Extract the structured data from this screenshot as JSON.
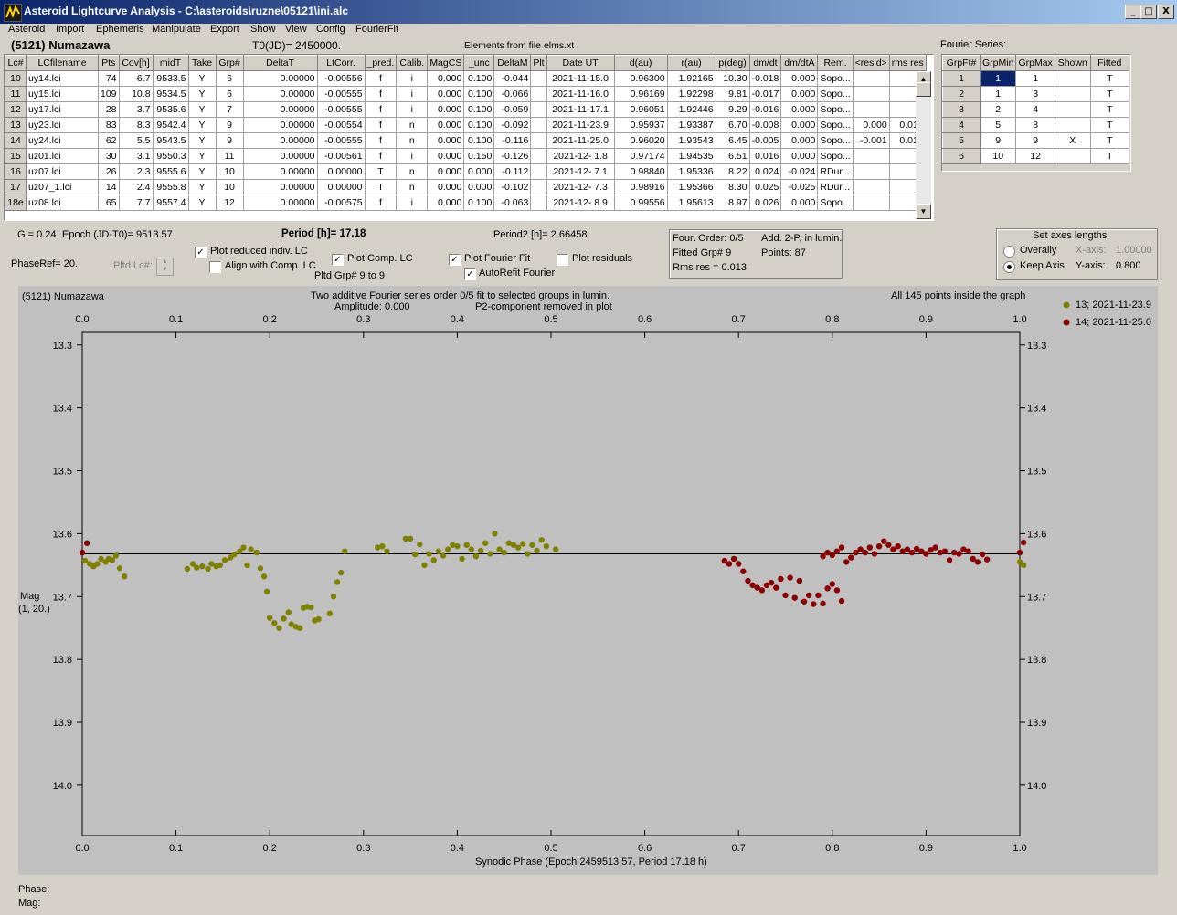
{
  "window": {
    "title": "Asteroid Lightcurve Analysis - C:\\asteroids\\ruzne\\05121\\ini.alc",
    "minimize": "_",
    "maximize": "□",
    "close": "X"
  },
  "menu": [
    "Asteroid",
    "Import",
    "Ephemeris",
    "Manipulate",
    "Export",
    "Show",
    "View",
    "Config",
    "FourierFit"
  ],
  "header": {
    "asteroid_name": "(5121) Numazawa",
    "t0": "T0(JD)= 2450000.",
    "elements": "Elements from file elms.xt",
    "fourier_series_label": "Fourier Series:"
  },
  "lc_table": {
    "columns": [
      "Lc#",
      "LCfilename",
      "Pts",
      "Cov[h]",
      "midT",
      "Take",
      "Grp#",
      "DeltaT",
      "LtCorr.",
      "_pred.",
      "Calib.",
      "MagCS",
      "_unc",
      "DeltaM",
      "Plt",
      "Date UT",
      "d(au)",
      "r(au)",
      "p(deg)",
      "dm/dt",
      "dm/dtA",
      "Rem.",
      "<resid>",
      "rms res"
    ],
    "rows": [
      [
        "10",
        "uy14.lci",
        "74",
        "6.7",
        "9533.5",
        "Y",
        "6",
        "0.00000",
        "-0.00556",
        "f",
        "i",
        "0.000",
        "0.100",
        "-0.044",
        "",
        "2021-11-15.0",
        "0.96300",
        "1.92165",
        "10.30",
        "-0.018",
        "0.000",
        "Sopo...",
        "",
        ""
      ],
      [
        "11",
        "uy15.lci",
        "109",
        "10.8",
        "9534.5",
        "Y",
        "6",
        "0.00000",
        "-0.00555",
        "f",
        "i",
        "0.000",
        "0.100",
        "-0.066",
        "",
        "2021-11-16.0",
        "0.96169",
        "1.92298",
        "9.81",
        "-0.017",
        "0.000",
        "Sopo...",
        "",
        ""
      ],
      [
        "12",
        "uy17.lci",
        "28",
        "3.7",
        "9535.6",
        "Y",
        "7",
        "0.00000",
        "-0.00555",
        "f",
        "i",
        "0.000",
        "0.100",
        "-0.059",
        "",
        "2021-11-17.1",
        "0.96051",
        "1.92446",
        "9.29",
        "-0.016",
        "0.000",
        "Sopo...",
        "",
        ""
      ],
      [
        "13",
        "uy23.lci",
        "83",
        "8.3",
        "9542.4",
        "Y",
        "9",
        "0.00000",
        "-0.00554",
        "f",
        "n",
        "0.000",
        "0.100",
        "-0.092",
        "",
        "2021-11-23.9",
        "0.95937",
        "1.93387",
        "6.70",
        "-0.008",
        "0.000",
        "Sopo...",
        "0.000",
        "0.014"
      ],
      [
        "14",
        "uy24.lci",
        "62",
        "5.5",
        "9543.5",
        "Y",
        "9",
        "0.00000",
        "-0.00555",
        "f",
        "n",
        "0.000",
        "0.100",
        "-0.116",
        "",
        "2021-11-25.0",
        "0.96020",
        "1.93543",
        "6.45",
        "-0.005",
        "0.000",
        "Sopo...",
        "-0.001",
        "0.010"
      ],
      [
        "15",
        "uz01.lci",
        "30",
        "3.1",
        "9550.3",
        "Y",
        "11",
        "0.00000",
        "-0.00561",
        "f",
        "i",
        "0.000",
        "0.150",
        "-0.126",
        "",
        "2021-12- 1.8",
        "0.97174",
        "1.94535",
        "6.51",
        "0.016",
        "0.000",
        "Sopo...",
        "",
        ""
      ],
      [
        "16",
        "uz07.lci",
        "26",
        "2.3",
        "9555.6",
        "Y",
        "10",
        "0.00000",
        "0.00000",
        "T",
        "n",
        "0.000",
        "0.000",
        "-0.112",
        "",
        "2021-12- 7.1",
        "0.98840",
        "1.95336",
        "8.22",
        "0.024",
        "-0.024",
        "RDur...",
        "",
        ""
      ],
      [
        "17",
        "uz07_1.lci",
        "14",
        "2.4",
        "9555.8",
        "Y",
        "10",
        "0.00000",
        "0.00000",
        "T",
        "n",
        "0.000",
        "0.000",
        "-0.102",
        "",
        "2021-12- 7.3",
        "0.98916",
        "1.95366",
        "8.30",
        "0.025",
        "-0.025",
        "RDur...",
        "",
        ""
      ],
      [
        "18e",
        "uz08.lci",
        "65",
        "7.7",
        "9557.4",
        "Y",
        "12",
        "0.00000",
        "-0.00575",
        "f",
        "i",
        "0.000",
        "0.100",
        "-0.063",
        "",
        "2021-12- 8.9",
        "0.99556",
        "1.95613",
        "8.97",
        "0.026",
        "0.000",
        "Sopo...",
        "",
        ""
      ]
    ]
  },
  "fourier_table": {
    "columns": [
      "GrpFt#",
      "GrpMin",
      "GrpMax",
      "Shown",
      "Fitted"
    ],
    "rows": [
      [
        "1",
        "1",
        "1",
        "",
        "T"
      ],
      [
        "2",
        "1",
        "3",
        "",
        "T"
      ],
      [
        "3",
        "2",
        "4",
        "",
        "T"
      ],
      [
        "4",
        "5",
        "8",
        "",
        "T"
      ],
      [
        "5",
        "9",
        "9",
        "X",
        "T"
      ],
      [
        "6",
        "10",
        "12",
        "",
        "T"
      ]
    ]
  },
  "controls": {
    "g": "G = 0.24",
    "epoch": "Epoch (JD-T0)= 9513.57",
    "period": "Period [h]= 17.18",
    "period2": "Period2 [h]= 2.66458",
    "phase_ref": "PhaseRef= 20.",
    "pltd_lc": "Pltd Lc#:",
    "plot_reduced": "Plot reduced indiv. LC",
    "align_comp": "Align with Comp. LC",
    "plot_comp": "Plot Comp. LC",
    "pltd_grp": "Pltd Grp#  9  to  9",
    "plot_fourier": "Plot Fourier Fit",
    "autorefit": "AutoRefit Fourier",
    "plot_residuals": "Plot residuals",
    "four_order": "Four. Order:  0/5",
    "add_2p": "Add. 2-P, in lumin.",
    "fitted_grp": "Fitted Grp# 9",
    "points": "Points: 87",
    "rms_res": "Rms res      = 0.013",
    "set_axes": "Set axes lengths",
    "overally": "Overally",
    "keep_axis": "Keep Axis",
    "x_axis_label": "X-axis:",
    "x_axis_value": "1.00000",
    "y_axis_label": "Y-axis:",
    "y_axis_value": "0.800",
    "checked": "✓"
  },
  "plot": {
    "name": "(5121) Numazawa",
    "subtitle1": "Two additive Fourier series order 0/5 fit to selected groups in lumin.",
    "subtitle2": "Amplitude: 0.000",
    "subtitle3": "P2-component removed in plot",
    "inside": "All 145 points inside the graph",
    "ylabel1": "Mag",
    "ylabel2": "(1, 20.)",
    "legend": [
      {
        "label": "13; 2021-11-23.9",
        "color": "#808000"
      },
      {
        "label": "14; 2021-11-25.0",
        "color": "#8b0000"
      }
    ]
  },
  "chart_data": {
    "type": "scatter",
    "xlabel": "Synodic Phase (Epoch 2459513.57, Period 17.18 h)",
    "ylabel": "Mag",
    "xlim": [
      0.0,
      1.0
    ],
    "ylim": [
      14.08,
      13.28
    ],
    "x_ticks": [
      "0.0",
      "0.1",
      "0.2",
      "0.3",
      "0.4",
      "0.5",
      "0.6",
      "0.7",
      "0.8",
      "0.9",
      "1.0"
    ],
    "y_ticks": [
      "13.3",
      "13.4",
      "13.5",
      "13.6",
      "13.7",
      "13.8",
      "13.9",
      "14.0"
    ],
    "reference_line": 13.632,
    "grid": false,
    "legend_position": "top-right",
    "series": [
      {
        "name": "13; 2021-11-23.9",
        "color": "#808000",
        "points": [
          [
            0.003,
            13.643
          ],
          [
            0.008,
            13.648
          ],
          [
            0.012,
            13.652
          ],
          [
            0.016,
            13.648
          ],
          [
            0.02,
            13.64
          ],
          [
            0.025,
            13.645
          ],
          [
            0.028,
            13.64
          ],
          [
            0.032,
            13.642
          ],
          [
            0.036,
            13.635
          ],
          [
            0.04,
            13.655
          ],
          [
            0.045,
            13.668
          ],
          [
            0.112,
            13.656
          ],
          [
            0.118,
            13.648
          ],
          [
            0.122,
            13.654
          ],
          [
            0.128,
            13.652
          ],
          [
            0.134,
            13.656
          ],
          [
            0.138,
            13.648
          ],
          [
            0.143,
            13.652
          ],
          [
            0.147,
            13.65
          ],
          [
            0.152,
            13.642
          ],
          [
            0.158,
            13.638
          ],
          [
            0.162,
            13.633
          ],
          [
            0.168,
            13.628
          ],
          [
            0.172,
            13.622
          ],
          [
            0.176,
            13.65
          ],
          [
            0.18,
            13.625
          ],
          [
            0.186,
            13.63
          ],
          [
            0.19,
            13.655
          ],
          [
            0.194,
            13.668
          ],
          [
            0.197,
            13.692
          ],
          [
            0.2,
            13.734
          ],
          [
            0.205,
            13.742
          ],
          [
            0.21,
            13.75
          ],
          [
            0.215,
            13.735
          ],
          [
            0.22,
            13.725
          ],
          [
            0.223,
            13.744
          ],
          [
            0.228,
            13.748
          ],
          [
            0.232,
            13.75
          ],
          [
            0.236,
            13.718
          ],
          [
            0.24,
            13.716
          ],
          [
            0.244,
            13.717
          ],
          [
            0.248,
            13.738
          ],
          [
            0.252,
            13.736
          ],
          [
            0.264,
            13.727
          ],
          [
            0.268,
            13.7
          ],
          [
            0.272,
            13.677
          ],
          [
            0.276,
            13.662
          ],
          [
            0.28,
            13.628
          ],
          [
            0.315,
            13.622
          ],
          [
            0.32,
            13.62
          ],
          [
            0.325,
            13.628
          ],
          [
            0.345,
            13.608
          ],
          [
            0.35,
            13.608
          ],
          [
            0.355,
            13.633
          ],
          [
            0.36,
            13.617
          ],
          [
            0.365,
            13.65
          ],
          [
            0.37,
            13.632
          ],
          [
            0.375,
            13.642
          ],
          [
            0.38,
            13.628
          ],
          [
            0.385,
            13.635
          ],
          [
            0.39,
            13.625
          ],
          [
            0.395,
            13.618
          ],
          [
            0.4,
            13.62
          ],
          [
            0.405,
            13.64
          ],
          [
            0.41,
            13.618
          ],
          [
            0.415,
            13.625
          ],
          [
            0.42,
            13.636
          ],
          [
            0.425,
            13.627
          ],
          [
            0.43,
            13.615
          ],
          [
            0.435,
            13.632
          ],
          [
            0.44,
            13.6
          ],
          [
            0.445,
            13.625
          ],
          [
            0.45,
            13.63
          ],
          [
            0.455,
            13.615
          ],
          [
            0.46,
            13.618
          ],
          [
            0.465,
            13.622
          ],
          [
            0.47,
            13.616
          ],
          [
            0.475,
            13.632
          ],
          [
            0.48,
            13.618
          ],
          [
            0.485,
            13.627
          ],
          [
            0.49,
            13.61
          ],
          [
            0.495,
            13.62
          ],
          [
            0.505,
            13.625
          ],
          [
            1.0,
            13.645
          ],
          [
            1.004,
            13.65
          ]
        ]
      },
      {
        "name": "14; 2021-11-25.0",
        "color": "#8b0000",
        "points": [
          [
            0.0,
            13.63
          ],
          [
            0.005,
            13.615
          ],
          [
            0.685,
            13.643
          ],
          [
            0.69,
            13.648
          ],
          [
            0.695,
            13.64
          ],
          [
            0.7,
            13.648
          ],
          [
            0.705,
            13.66
          ],
          [
            0.71,
            13.675
          ],
          [
            0.715,
            13.682
          ],
          [
            0.72,
            13.686
          ],
          [
            0.725,
            13.69
          ],
          [
            0.73,
            13.682
          ],
          [
            0.735,
            13.678
          ],
          [
            0.74,
            13.686
          ],
          [
            0.745,
            13.672
          ],
          [
            0.75,
            13.698
          ],
          [
            0.755,
            13.67
          ],
          [
            0.76,
            13.702
          ],
          [
            0.765,
            13.675
          ],
          [
            0.77,
            13.708
          ],
          [
            0.775,
            13.698
          ],
          [
            0.78,
            13.712
          ],
          [
            0.785,
            13.698
          ],
          [
            0.79,
            13.711
          ],
          [
            0.795,
            13.687
          ],
          [
            0.8,
            13.68
          ],
          [
            0.805,
            13.69
          ],
          [
            0.81,
            13.707
          ],
          [
            0.79,
            13.636
          ],
          [
            0.795,
            13.63
          ],
          [
            0.8,
            13.634
          ],
          [
            0.805,
            13.628
          ],
          [
            0.81,
            13.622
          ],
          [
            0.815,
            13.645
          ],
          [
            0.82,
            13.638
          ],
          [
            0.825,
            13.63
          ],
          [
            0.83,
            13.625
          ],
          [
            0.835,
            13.63
          ],
          [
            0.84,
            13.622
          ],
          [
            0.845,
            13.632
          ],
          [
            0.85,
            13.62
          ],
          [
            0.855,
            13.612
          ],
          [
            0.86,
            13.618
          ],
          [
            0.865,
            13.625
          ],
          [
            0.87,
            13.62
          ],
          [
            0.875,
            13.628
          ],
          [
            0.88,
            13.625
          ],
          [
            0.885,
            13.63
          ],
          [
            0.89,
            13.624
          ],
          [
            0.895,
            13.628
          ],
          [
            0.9,
            13.632
          ],
          [
            0.905,
            13.626
          ],
          [
            0.91,
            13.622
          ],
          [
            0.915,
            13.63
          ],
          [
            0.92,
            13.628
          ],
          [
            0.925,
            13.642
          ],
          [
            0.93,
            13.63
          ],
          [
            0.935,
            13.632
          ],
          [
            0.94,
            13.625
          ],
          [
            0.945,
            13.628
          ],
          [
            0.95,
            13.64
          ],
          [
            0.955,
            13.645
          ],
          [
            0.96,
            13.633
          ],
          [
            0.965,
            13.641
          ],
          [
            1.0,
            13.63
          ],
          [
            1.004,
            13.614
          ]
        ]
      }
    ]
  },
  "footer": {
    "phase": "Phase:",
    "mag": "Mag:"
  }
}
